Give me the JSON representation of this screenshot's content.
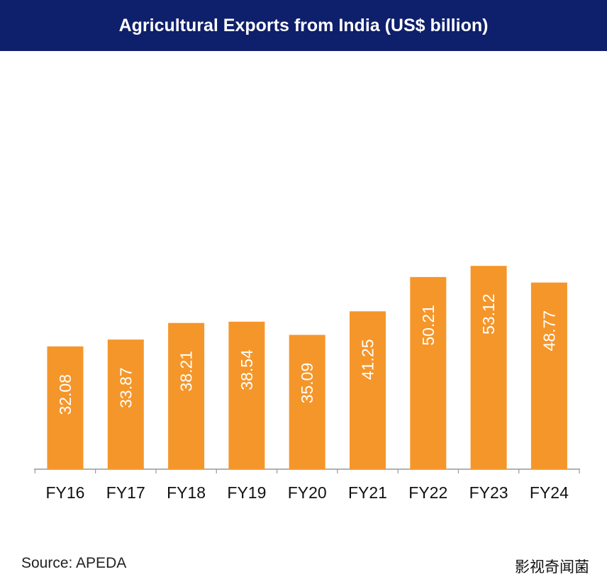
{
  "colors": {
    "header_bg": "#0E1F6B",
    "bar": "#F5962A",
    "axis": "#999999",
    "label_text": "#ffffff"
  },
  "chart_data": {
    "type": "bar",
    "title": "Agricultural Exports from India (US$ billion)",
    "categories": [
      "FY16",
      "FY17",
      "FY18",
      "FY19",
      "FY20",
      "FY21",
      "FY22",
      "FY23",
      "FY24"
    ],
    "values": [
      32.08,
      33.87,
      38.21,
      38.54,
      35.09,
      41.25,
      50.21,
      53.12,
      48.77
    ],
    "value_labels": [
      "32.08",
      "33.87",
      "38.21",
      "38.54",
      "35.09",
      "41.25",
      "50.21",
      "53.12",
      "48.77"
    ],
    "ylim": [
      0,
      60
    ],
    "grid": false,
    "legend": "none",
    "data_label_orientation": "vertical"
  },
  "footer": {
    "source": "Source: APEDA",
    "watermark": "影视奇闻菌"
  }
}
